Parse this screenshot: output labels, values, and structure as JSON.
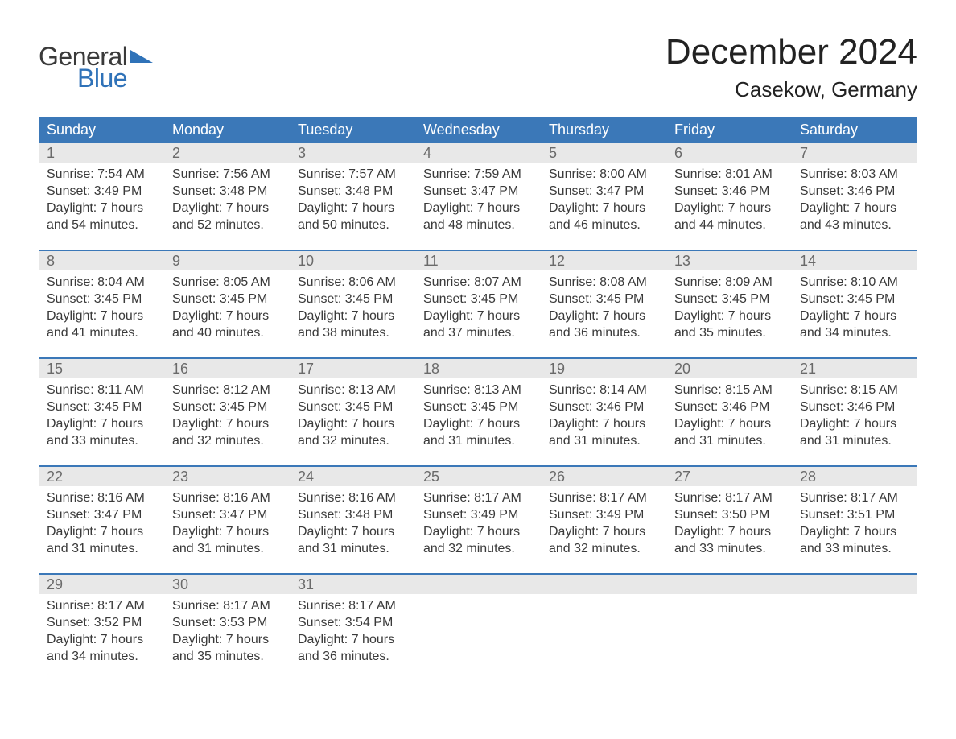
{
  "logo": {
    "general": "General",
    "blue": "Blue",
    "tri_color": "#2f72b8"
  },
  "title": "December 2024",
  "location": "Casekow, Germany",
  "colors": {
    "header_bg": "#3b78b8",
    "header_text": "#ffffff",
    "week_divider": "#3b78b8",
    "daynum_bg": "#e8e8e8",
    "daynum_text": "#6a6a6a",
    "body_text": "#3a3a3a"
  },
  "weekdays": [
    "Sunday",
    "Monday",
    "Tuesday",
    "Wednesday",
    "Thursday",
    "Friday",
    "Saturday"
  ],
  "weeks": [
    [
      {
        "n": "1",
        "sunrise": "7:54 AM",
        "sunset": "3:49 PM",
        "dl1": "Daylight: 7 hours",
        "dl2": "and 54 minutes."
      },
      {
        "n": "2",
        "sunrise": "7:56 AM",
        "sunset": "3:48 PM",
        "dl1": "Daylight: 7 hours",
        "dl2": "and 52 minutes."
      },
      {
        "n": "3",
        "sunrise": "7:57 AM",
        "sunset": "3:48 PM",
        "dl1": "Daylight: 7 hours",
        "dl2": "and 50 minutes."
      },
      {
        "n": "4",
        "sunrise": "7:59 AM",
        "sunset": "3:47 PM",
        "dl1": "Daylight: 7 hours",
        "dl2": "and 48 minutes."
      },
      {
        "n": "5",
        "sunrise": "8:00 AM",
        "sunset": "3:47 PM",
        "dl1": "Daylight: 7 hours",
        "dl2": "and 46 minutes."
      },
      {
        "n": "6",
        "sunrise": "8:01 AM",
        "sunset": "3:46 PM",
        "dl1": "Daylight: 7 hours",
        "dl2": "and 44 minutes."
      },
      {
        "n": "7",
        "sunrise": "8:03 AM",
        "sunset": "3:46 PM",
        "dl1": "Daylight: 7 hours",
        "dl2": "and 43 minutes."
      }
    ],
    [
      {
        "n": "8",
        "sunrise": "8:04 AM",
        "sunset": "3:45 PM",
        "dl1": "Daylight: 7 hours",
        "dl2": "and 41 minutes."
      },
      {
        "n": "9",
        "sunrise": "8:05 AM",
        "sunset": "3:45 PM",
        "dl1": "Daylight: 7 hours",
        "dl2": "and 40 minutes."
      },
      {
        "n": "10",
        "sunrise": "8:06 AM",
        "sunset": "3:45 PM",
        "dl1": "Daylight: 7 hours",
        "dl2": "and 38 minutes."
      },
      {
        "n": "11",
        "sunrise": "8:07 AM",
        "sunset": "3:45 PM",
        "dl1": "Daylight: 7 hours",
        "dl2": "and 37 minutes."
      },
      {
        "n": "12",
        "sunrise": "8:08 AM",
        "sunset": "3:45 PM",
        "dl1": "Daylight: 7 hours",
        "dl2": "and 36 minutes."
      },
      {
        "n": "13",
        "sunrise": "8:09 AM",
        "sunset": "3:45 PM",
        "dl1": "Daylight: 7 hours",
        "dl2": "and 35 minutes."
      },
      {
        "n": "14",
        "sunrise": "8:10 AM",
        "sunset": "3:45 PM",
        "dl1": "Daylight: 7 hours",
        "dl2": "and 34 minutes."
      }
    ],
    [
      {
        "n": "15",
        "sunrise": "8:11 AM",
        "sunset": "3:45 PM",
        "dl1": "Daylight: 7 hours",
        "dl2": "and 33 minutes."
      },
      {
        "n": "16",
        "sunrise": "8:12 AM",
        "sunset": "3:45 PM",
        "dl1": "Daylight: 7 hours",
        "dl2": "and 32 minutes."
      },
      {
        "n": "17",
        "sunrise": "8:13 AM",
        "sunset": "3:45 PM",
        "dl1": "Daylight: 7 hours",
        "dl2": "and 32 minutes."
      },
      {
        "n": "18",
        "sunrise": "8:13 AM",
        "sunset": "3:45 PM",
        "dl1": "Daylight: 7 hours",
        "dl2": "and 31 minutes."
      },
      {
        "n": "19",
        "sunrise": "8:14 AM",
        "sunset": "3:46 PM",
        "dl1": "Daylight: 7 hours",
        "dl2": "and 31 minutes."
      },
      {
        "n": "20",
        "sunrise": "8:15 AM",
        "sunset": "3:46 PM",
        "dl1": "Daylight: 7 hours",
        "dl2": "and 31 minutes."
      },
      {
        "n": "21",
        "sunrise": "8:15 AM",
        "sunset": "3:46 PM",
        "dl1": "Daylight: 7 hours",
        "dl2": "and 31 minutes."
      }
    ],
    [
      {
        "n": "22",
        "sunrise": "8:16 AM",
        "sunset": "3:47 PM",
        "dl1": "Daylight: 7 hours",
        "dl2": "and 31 minutes."
      },
      {
        "n": "23",
        "sunrise": "8:16 AM",
        "sunset": "3:47 PM",
        "dl1": "Daylight: 7 hours",
        "dl2": "and 31 minutes."
      },
      {
        "n": "24",
        "sunrise": "8:16 AM",
        "sunset": "3:48 PM",
        "dl1": "Daylight: 7 hours",
        "dl2": "and 31 minutes."
      },
      {
        "n": "25",
        "sunrise": "8:17 AM",
        "sunset": "3:49 PM",
        "dl1": "Daylight: 7 hours",
        "dl2": "and 32 minutes."
      },
      {
        "n": "26",
        "sunrise": "8:17 AM",
        "sunset": "3:49 PM",
        "dl1": "Daylight: 7 hours",
        "dl2": "and 32 minutes."
      },
      {
        "n": "27",
        "sunrise": "8:17 AM",
        "sunset": "3:50 PM",
        "dl1": "Daylight: 7 hours",
        "dl2": "and 33 minutes."
      },
      {
        "n": "28",
        "sunrise": "8:17 AM",
        "sunset": "3:51 PM",
        "dl1": "Daylight: 7 hours",
        "dl2": "and 33 minutes."
      }
    ],
    [
      {
        "n": "29",
        "sunrise": "8:17 AM",
        "sunset": "3:52 PM",
        "dl1": "Daylight: 7 hours",
        "dl2": "and 34 minutes."
      },
      {
        "n": "30",
        "sunrise": "8:17 AM",
        "sunset": "3:53 PM",
        "dl1": "Daylight: 7 hours",
        "dl2": "and 35 minutes."
      },
      {
        "n": "31",
        "sunrise": "8:17 AM",
        "sunset": "3:54 PM",
        "dl1": "Daylight: 7 hours",
        "dl2": "and 36 minutes."
      },
      null,
      null,
      null,
      null
    ]
  ],
  "labels": {
    "sunrise": "Sunrise: ",
    "sunset": "Sunset: "
  }
}
